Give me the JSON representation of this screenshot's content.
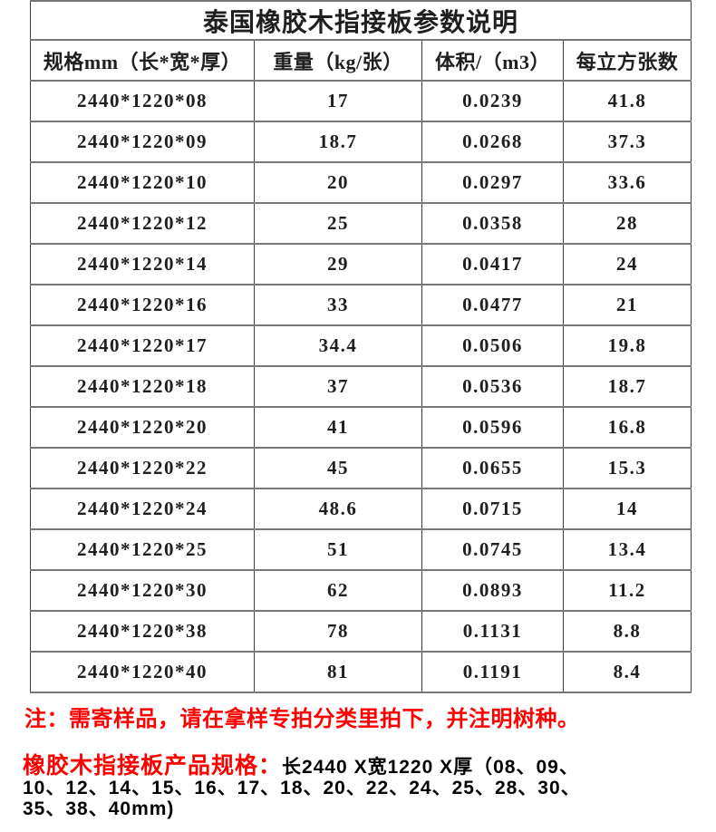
{
  "title": "泰国橡胶木指接板参数说明",
  "table": {
    "headers": [
      "规格mm（长*宽*厚）",
      "重量（kg/张）",
      "体积/（m3）",
      "每立方张数"
    ],
    "rows": [
      [
        "2440*1220*08",
        "17",
        "0.0239",
        "41.8"
      ],
      [
        "2440*1220*09",
        "18.7",
        "0.0268",
        "37.3"
      ],
      [
        "2440*1220*10",
        "20",
        "0.0297",
        "33.6"
      ],
      [
        "2440*1220*12",
        "25",
        "0.0358",
        "28"
      ],
      [
        "2440*1220*14",
        "29",
        "0.0417",
        "24"
      ],
      [
        "2440*1220*16",
        "33",
        "0.0477",
        "21"
      ],
      [
        "2440*1220*17",
        "34.4",
        "0.0506",
        "19.8"
      ],
      [
        "2440*1220*18",
        "37",
        "0.0536",
        "18.7"
      ],
      [
        "2440*1220*20",
        "41",
        "0.0596",
        "16.8"
      ],
      [
        "2440*1220*22",
        "45",
        "0.0655",
        "15.3"
      ],
      [
        "2440*1220*24",
        "48.6",
        "0.0715",
        "14"
      ],
      [
        "2440*1220*25",
        "51",
        "0.0745",
        "13.4"
      ],
      [
        "2440*1220*30",
        "62",
        "0.0893",
        "11.2"
      ],
      [
        "2440*1220*38",
        "78",
        "0.1131",
        "8.8"
      ],
      [
        "2440*1220*40",
        "81",
        "0.1191",
        "8.4"
      ]
    ]
  },
  "notes": {
    "sample_note": "注：需寄样品，请在拿样专拍分类里拍下，并注明树种。",
    "spec_label": "橡胶木指接板产品规格：",
    "spec_line1": "长2440 X宽1220 X厚（08、09、",
    "spec_line2": "10、12、14、15、16、17、18、20、22、24、25、28、30、",
    "spec_line3": "35、38、40mm)"
  },
  "colors": {
    "note_red": "#fe0000",
    "table_text": "#1f1f1f",
    "border_vertical": "#3f3f3f",
    "border_horizontal": "#777777",
    "background": "#ffffff"
  }
}
